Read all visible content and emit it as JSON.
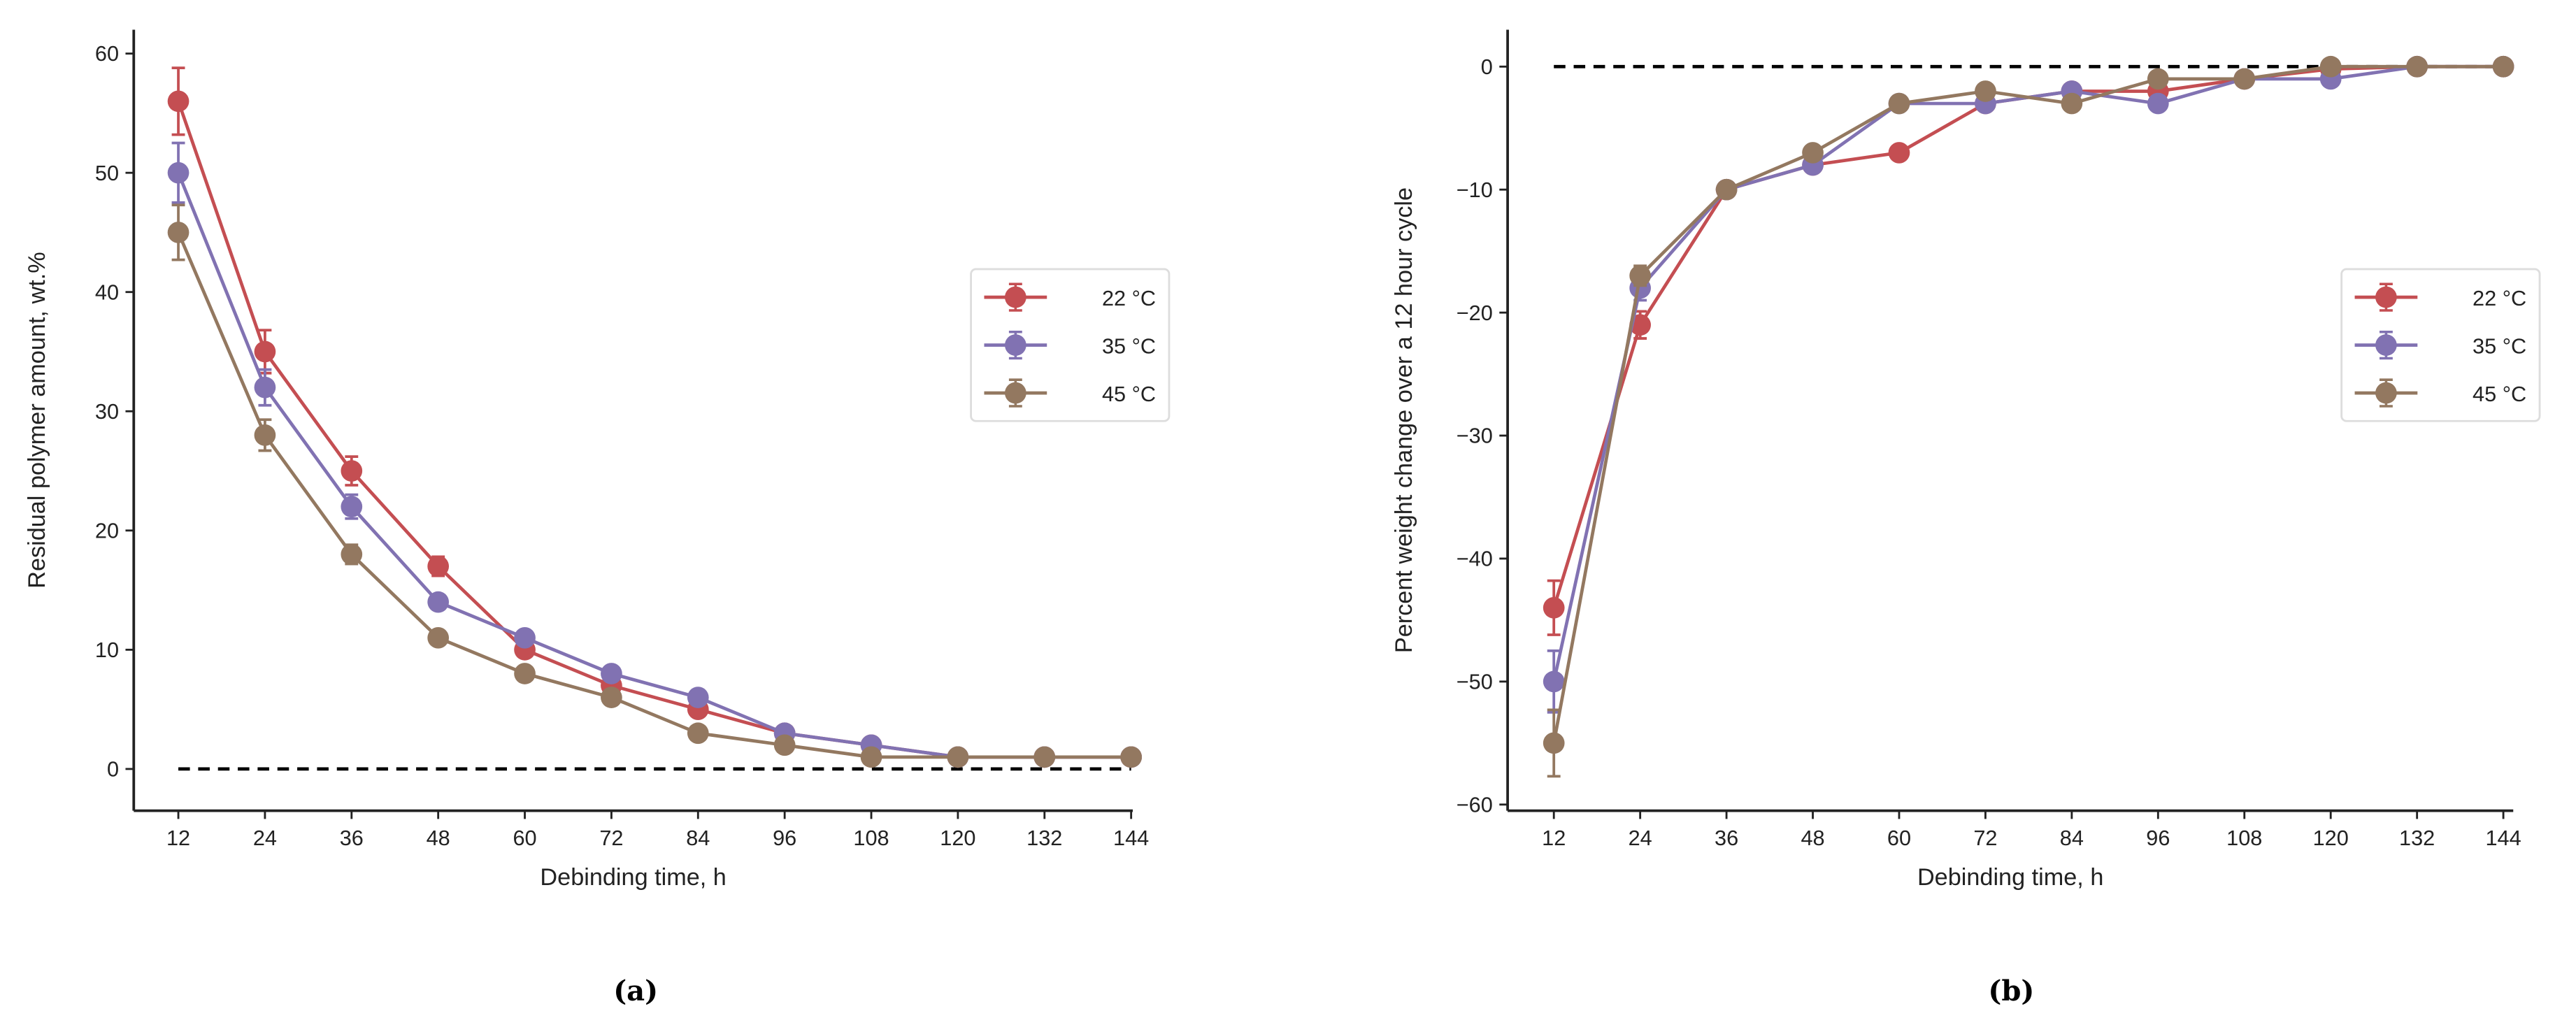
{
  "chart_data": [
    {
      "type": "line",
      "panel_label": "a",
      "xlabel": "Debinding time, h",
      "ylabel": "Residual polymer amount, wt.%",
      "x": [
        12,
        24,
        36,
        48,
        60,
        72,
        84,
        96,
        108,
        120,
        132,
        144
      ],
      "xticks": [
        "12",
        "24",
        "36",
        "48",
        "60",
        "72",
        "84",
        "96",
        "108",
        "120",
        "132",
        "144"
      ],
      "yticks": [
        0,
        10,
        20,
        30,
        40,
        50,
        60
      ],
      "ylim": [
        -3.5,
        62
      ],
      "reference_line": 0,
      "legend_position": "center-right",
      "series": [
        {
          "name": "22 °C",
          "color": "#C44E52",
          "values": [
            56,
            35,
            25,
            17,
            10,
            7,
            5,
            3,
            2,
            1,
            1,
            1
          ],
          "errors": [
            2.8,
            1.8,
            1.2,
            0.8,
            0.5,
            0.4,
            0.3,
            0.2,
            0.2,
            0.2,
            0.2,
            0.2
          ]
        },
        {
          "name": "35 °C",
          "color": "#8172B2",
          "values": [
            50,
            32,
            22,
            14,
            11,
            8,
            6,
            3,
            2,
            1,
            1,
            1
          ],
          "errors": [
            2.5,
            1.5,
            1.0,
            0.6,
            0.5,
            0.4,
            0.3,
            0.2,
            0.2,
            0.2,
            0.2,
            0.2
          ]
        },
        {
          "name": "45 °C",
          "color": "#937860",
          "values": [
            45,
            28,
            18,
            11,
            8,
            6,
            3,
            2,
            1,
            1,
            1,
            1
          ],
          "errors": [
            2.3,
            1.3,
            0.8,
            0.5,
            0.4,
            0.3,
            0.2,
            0.2,
            0.2,
            0.2,
            0.2,
            0.2
          ]
        }
      ]
    },
    {
      "type": "line",
      "panel_label": "b",
      "xlabel": "Debinding time, h",
      "ylabel": "Percent weight change over a 12 hour cycle",
      "x": [
        12,
        24,
        36,
        48,
        60,
        72,
        84,
        96,
        108,
        120,
        132,
        144
      ],
      "xticks": [
        "12",
        "24",
        "36",
        "48",
        "60",
        "72",
        "84",
        "96",
        "108",
        "120",
        "132",
        "144"
      ],
      "yticks": [
        -60,
        -50,
        -40,
        -30,
        -20,
        -10,
        0
      ],
      "ylim": [
        -60.5,
        3
      ],
      "reference_line": 0,
      "legend_position": "center-right",
      "series": [
        {
          "name": "22 °C",
          "color": "#C44E52",
          "values": [
            -44,
            -21,
            -10,
            -8,
            -7,
            -3,
            -2,
            -2,
            -1,
            -0.2,
            0,
            0
          ],
          "errors": [
            2.2,
            1.1,
            0.5,
            0.4,
            0.4,
            0.3,
            0.2,
            0.2,
            0.2,
            0.2,
            0.2,
            0.2
          ]
        },
        {
          "name": "35 °C",
          "color": "#8172B2",
          "values": [
            -50,
            -18,
            -10,
            -8,
            -3,
            -3,
            -2,
            -3,
            -1,
            -1,
            0,
            0
          ],
          "errors": [
            2.5,
            1.0,
            0.5,
            0.4,
            0.3,
            0.3,
            0.2,
            0.2,
            0.2,
            0.2,
            0.2,
            0.2
          ]
        },
        {
          "name": "45 °C",
          "color": "#937860",
          "values": [
            -55,
            -17,
            -10,
            -7,
            -3,
            -2,
            -3,
            -1,
            -1,
            0,
            0,
            0
          ],
          "errors": [
            2.7,
            0.8,
            0.5,
            0.4,
            0.3,
            0.3,
            0.2,
            0.2,
            0.2,
            0.2,
            0.2,
            0.2
          ]
        }
      ]
    }
  ],
  "captions": [
    "(a)",
    "(b)"
  ]
}
